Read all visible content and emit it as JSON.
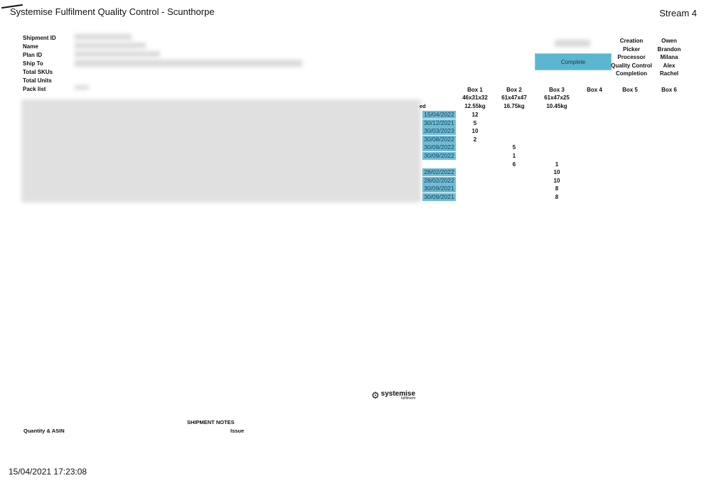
{
  "header": {
    "title": "Systemise Fulfilment Quality Control - Scunthorpe",
    "stream": "Stream 4"
  },
  "fields": [
    "Shipment ID",
    "Name",
    "Plan ID",
    "Ship To",
    "Total SKUs",
    "Total Units",
    "Pack list"
  ],
  "status_button": "Complete",
  "roles": [
    {
      "role": "Creation",
      "person": "Owen"
    },
    {
      "role": "Picker",
      "person": "Brandon"
    },
    {
      "role": "Processor",
      "person": "Milana"
    },
    {
      "role": "Quality Control",
      "person": "Alex"
    },
    {
      "role": "Completion",
      "person": "Rachel"
    }
  ],
  "boxes": [
    {
      "name": "Box 1",
      "dims": "46x31x32",
      "weight": "12.55kg"
    },
    {
      "name": "Box 2",
      "dims": "61x47x47",
      "weight": "16.75kg"
    },
    {
      "name": "Box 3",
      "dims": "61x47x25",
      "weight": "10.45kg"
    },
    {
      "name": "Box 4",
      "dims": "",
      "weight": ""
    },
    {
      "name": "Box 5",
      "dims": "",
      "weight": ""
    },
    {
      "name": "Box 6",
      "dims": "",
      "weight": ""
    }
  ],
  "table_header_fragment": "ed",
  "rows": [
    {
      "date": "15/04/2022",
      "b1": "12",
      "b2": "",
      "b3": ""
    },
    {
      "date": "30/12/2021",
      "b1": "5",
      "b2": "",
      "b3": ""
    },
    {
      "date": "30/03/2023",
      "b1": "10",
      "b2": "",
      "b3": ""
    },
    {
      "date": "30/08/2022",
      "b1": "2",
      "b2": "",
      "b3": ""
    },
    {
      "date": "30/09/2022",
      "b1": "",
      "b2": "5",
      "b3": ""
    },
    {
      "date": "30/09/2022",
      "b1": "",
      "b2": "1",
      "b3": ""
    },
    {
      "date": "",
      "b1": "",
      "b2": "6",
      "b3": "1"
    },
    {
      "date": "28/02/2022",
      "b1": "",
      "b2": "",
      "b3": "10"
    },
    {
      "date": "28/02/2022",
      "b1": "",
      "b2": "",
      "b3": "10"
    },
    {
      "date": "30/09/2021",
      "b1": "",
      "b2": "",
      "b3": "8"
    },
    {
      "date": "30/09/2021",
      "b1": "",
      "b2": "",
      "b3": "8"
    }
  ],
  "logo": {
    "name": "systemise",
    "sub": "fulfilment"
  },
  "notes": {
    "title": "SHIPMENT NOTES",
    "col1": "Quantity & ASIN",
    "col2": "Issue"
  },
  "footer_timestamp": "15/04/2021 17:23:08"
}
